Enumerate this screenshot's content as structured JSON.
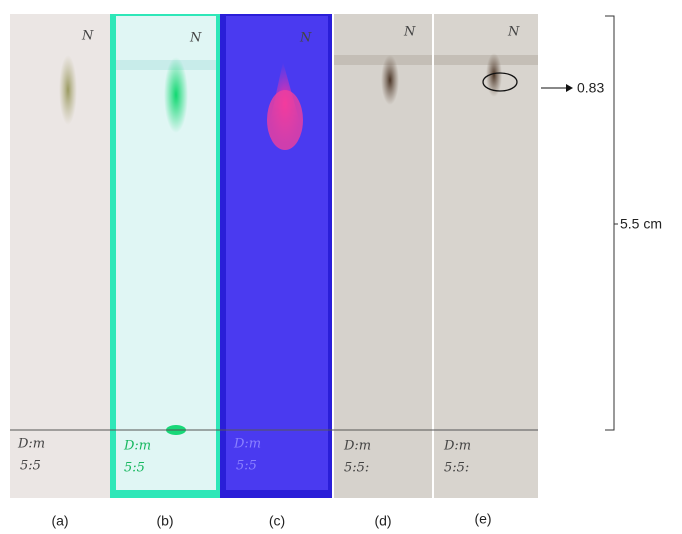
{
  "plates": [
    {
      "label": "(a)",
      "mark": "N",
      "note": "D:m",
      "ratio": "5:5"
    },
    {
      "label": "(b)",
      "mark": "N",
      "note": "D:m",
      "ratio": "5:5"
    },
    {
      "label": "(c)",
      "mark": "N",
      "note": "D:m",
      "ratio": "5:5"
    },
    {
      "label": "(d)",
      "mark": "N",
      "note": "D:m",
      "ratio": "5:5:"
    },
    {
      "label": "(e)",
      "mark": "N",
      "note": "D:m",
      "ratio": "5:5:"
    }
  ],
  "annotations": {
    "rf": "0.83",
    "length": "5.5 cm"
  }
}
